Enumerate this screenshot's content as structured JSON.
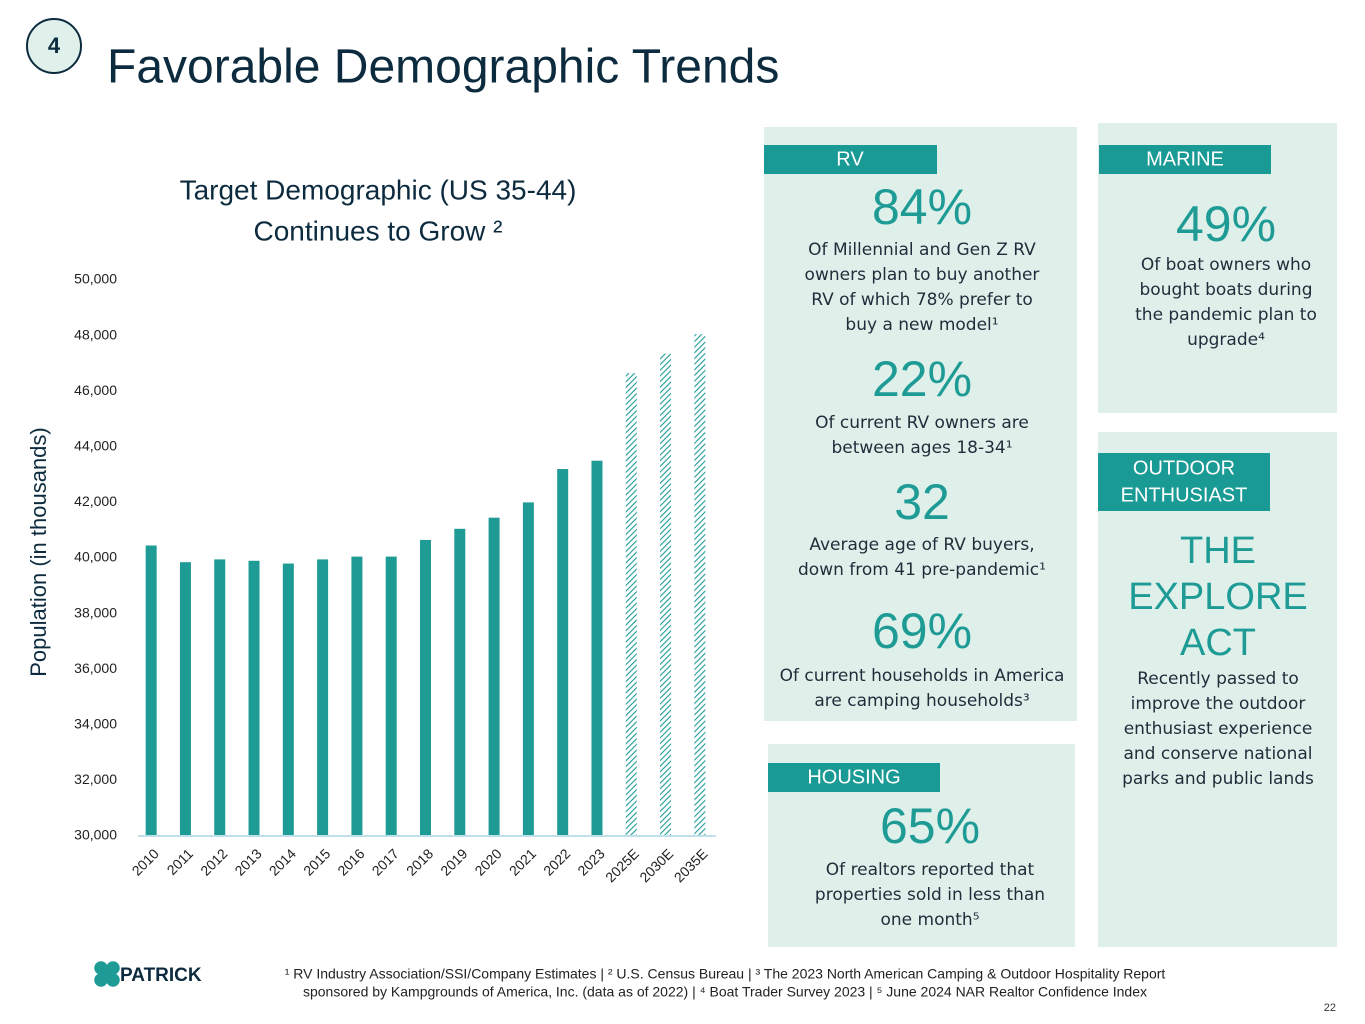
{
  "badge": "4",
  "title": "Favorable Demographic Trends",
  "chart_data": {
    "type": "bar",
    "title": [
      "Target Demographic (US 35-44)",
      "Continues to Grow ²"
    ],
    "y_label": "Population (in thousands)",
    "categories": [
      "2010",
      "2011",
      "2012",
      "2013",
      "2014",
      "2015",
      "2016",
      "2017",
      "2018",
      "2019",
      "2020",
      "2021",
      "2022",
      "2023",
      "2025E",
      "2030E",
      "2035E"
    ],
    "values": [
      40450,
      39850,
      39950,
      39900,
      39800,
      39950,
      40050,
      40050,
      40650,
      41050,
      41450,
      42000,
      43200,
      43500,
      46650,
      47350,
      48050
    ],
    "hatch": [
      false,
      false,
      false,
      false,
      false,
      false,
      false,
      false,
      false,
      false,
      false,
      false,
      false,
      false,
      true,
      true,
      true
    ],
    "color": "#1f9b96",
    "ylim": [
      30000,
      50000
    ],
    "yticks": [
      {
        "value": 30000,
        "label": "30,000"
      },
      {
        "value": 32000,
        "label": "32,000"
      },
      {
        "value": 34000,
        "label": "34,000"
      },
      {
        "value": 36000,
        "label": "36,000"
      },
      {
        "value": 38000,
        "label": "38,000"
      },
      {
        "value": 40000,
        "label": "40,000"
      },
      {
        "value": 42000,
        "label": "42,000"
      },
      {
        "value": 44000,
        "label": "44,000"
      },
      {
        "value": 46000,
        "label": "46,000"
      },
      {
        "value": 48000,
        "label": "48,000"
      },
      {
        "value": 50000,
        "label": "50,000"
      }
    ],
    "grid": false
  },
  "panels": {
    "rv": {
      "label": "RV",
      "stats": [
        {
          "value": "84%",
          "text": [
            "Of Millennial and Gen Z RV",
            "owners plan to buy another",
            "RV of which 78% prefer to",
            "buy a new model¹"
          ]
        },
        {
          "value": "22%",
          "text": [
            "Of current RV owners are",
            "between ages 18-34¹"
          ]
        },
        {
          "value": "32",
          "text": [
            "Average age of RV buyers,",
            "down from 41 pre-pandemic¹"
          ]
        },
        {
          "value": "69%",
          "text": [
            "Of current households in America",
            "are camping households³"
          ]
        }
      ]
    },
    "marine": {
      "label": "MARINE",
      "stats": [
        {
          "value": "49%",
          "text": [
            "Of boat owners who",
            "bought boats during",
            "the pandemic plan to",
            "upgrade⁴"
          ]
        }
      ]
    },
    "outdoor": {
      "label": [
        "OUTDOOR",
        "ENTHUSIAST"
      ],
      "headline": [
        "THE",
        "EXPLORE",
        "ACT"
      ],
      "text": [
        "Recently passed to",
        "improve the outdoor",
        "enthusiast experience",
        "and conserve national",
        "parks and public lands"
      ]
    },
    "housing": {
      "label": "HOUSING",
      "stats": [
        {
          "value": "65%",
          "text": [
            "Of realtors reported that",
            "properties sold in less than",
            "one month⁵"
          ]
        }
      ]
    }
  },
  "footnotes": [
    "¹ RV Industry Association/SSI/Company Estimates | ² U.S. Census Bureau | ³ The 2023 North American Camping & Outdoor Hospitality Report",
    "sponsored by Kampgrounds of America, Inc. (data as of 2022) | ⁴ Boat Trader Survey 2023 | ⁵ June 2024 NAR Realtor Confidence Index"
  ],
  "logo": "PATRICK",
  "page_number": "22"
}
